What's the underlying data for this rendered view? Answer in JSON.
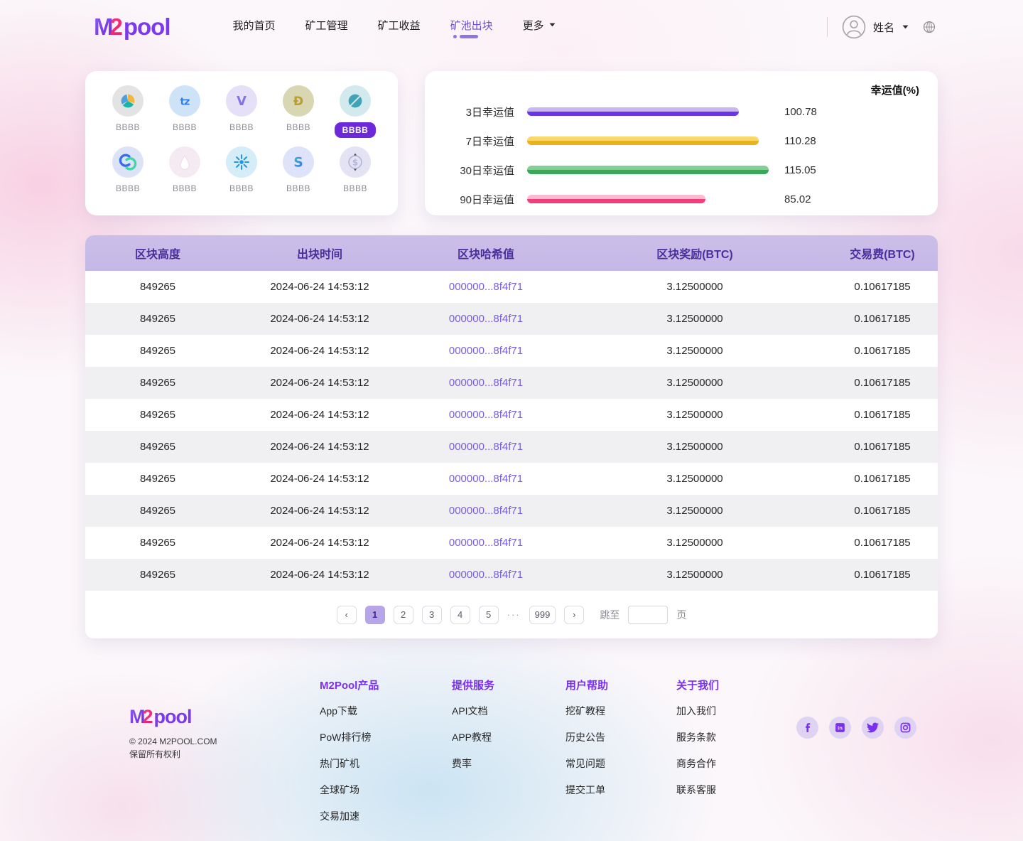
{
  "brand": {
    "m": "M",
    "two": "2",
    "pool": "pool"
  },
  "accent": {
    "purple": "#7c3aed",
    "pink": "#ec2d7a",
    "link_purple": "#7a5ce0",
    "selected_pill": "#6d28d9"
  },
  "header": {
    "nav": [
      {
        "label": "我的首页",
        "active": false
      },
      {
        "label": "矿工管理",
        "active": false
      },
      {
        "label": "矿工收益",
        "active": false
      },
      {
        "label": "矿池出块",
        "active": true
      },
      {
        "label": "更多",
        "active": false,
        "dropdown": true
      }
    ],
    "user": {
      "name": "姓名"
    }
  },
  "coin_panel": {
    "coins": [
      {
        "label": "BBBB",
        "icon": "nem",
        "bg": "#e3e3e3",
        "selected": false
      },
      {
        "label": "BBBB",
        "icon": "tezos",
        "bg": "#cfe3f8",
        "selected": false
      },
      {
        "label": "BBBB",
        "icon": "vechain",
        "bg": "#e5e0f7",
        "selected": false
      },
      {
        "label": "BBBB",
        "icon": "dogecoin",
        "bg": "#d8d7b2",
        "selected": false
      },
      {
        "label": "BBBB",
        "icon": "ontology",
        "bg": "#d2e9ed",
        "selected": true
      },
      {
        "label": "BBBB",
        "icon": "decred",
        "bg": "#dde3f7",
        "selected": false
      },
      {
        "label": "BBBB",
        "icon": "droplet",
        "bg": "#f6eaf2",
        "selected": false
      },
      {
        "label": "BBBB",
        "icon": "bitshares",
        "bg": "#d5ecf9",
        "selected": false
      },
      {
        "label": "BBBB",
        "icon": "s-cube",
        "bg": "#dfe3f9",
        "selected": false
      },
      {
        "label": "BBBB",
        "icon": "dollar",
        "bg": "#e3e3f4",
        "selected": false
      }
    ]
  },
  "chart_data": {
    "type": "bar",
    "orientation": "horizontal",
    "title": "幸运值(%)",
    "categories": [
      "3日幸运值",
      "7日幸运值",
      "30日幸运值",
      "90日幸运值"
    ],
    "values": [
      100.78,
      110.28,
      115.05,
      85.02
    ],
    "value_labels": [
      "100.78",
      "110.28",
      "115.05",
      "85.02"
    ],
    "xlim": [
      0,
      115.05
    ],
    "grid": false,
    "legend": "none",
    "colors_light": [
      "#c9b7f1",
      "#f8d76d",
      "#82cf93",
      "#f8bcd1"
    ],
    "colors_dark": [
      "#6a35e6",
      "#eab31e",
      "#3aa85b",
      "#f23f7c"
    ]
  },
  "table": {
    "columns": [
      "区块高度",
      "出块时间",
      "区块哈希值",
      "区块奖励(BTC)",
      "交易费(BTC)"
    ],
    "rows": [
      {
        "height": "849265",
        "time": "2024-06-24 14:53:12",
        "hash": "000000...8f4f71",
        "reward": "3.12500000",
        "fee": "0.10617185"
      },
      {
        "height": "849265",
        "time": "2024-06-24 14:53:12",
        "hash": "000000...8f4f71",
        "reward": "3.12500000",
        "fee": "0.10617185"
      },
      {
        "height": "849265",
        "time": "2024-06-24 14:53:12",
        "hash": "000000...8f4f71",
        "reward": "3.12500000",
        "fee": "0.10617185"
      },
      {
        "height": "849265",
        "time": "2024-06-24 14:53:12",
        "hash": "000000...8f4f71",
        "reward": "3.12500000",
        "fee": "0.10617185"
      },
      {
        "height": "849265",
        "time": "2024-06-24 14:53:12",
        "hash": "000000...8f4f71",
        "reward": "3.12500000",
        "fee": "0.10617185"
      },
      {
        "height": "849265",
        "time": "2024-06-24 14:53:12",
        "hash": "000000...8f4f71",
        "reward": "3.12500000",
        "fee": "0.10617185"
      },
      {
        "height": "849265",
        "time": "2024-06-24 14:53:12",
        "hash": "000000...8f4f71",
        "reward": "3.12500000",
        "fee": "0.10617185"
      },
      {
        "height": "849265",
        "time": "2024-06-24 14:53:12",
        "hash": "000000...8f4f71",
        "reward": "3.12500000",
        "fee": "0.10617185"
      },
      {
        "height": "849265",
        "time": "2024-06-24 14:53:12",
        "hash": "000000...8f4f71",
        "reward": "3.12500000",
        "fee": "0.10617185"
      },
      {
        "height": "849265",
        "time": "2024-06-24 14:53:12",
        "hash": "000000...8f4f71",
        "reward": "3.12500000",
        "fee": "0.10617185"
      }
    ]
  },
  "pagination": {
    "prev": "‹",
    "next": "›",
    "pages": [
      "1",
      "2",
      "3",
      "4",
      "5"
    ],
    "active_page": "1",
    "ellipsis": "···",
    "last_page": "999",
    "jump_label": "跳至",
    "unit_label": "页",
    "jump_value": ""
  },
  "footer": {
    "copyright_line1": "© 2024 M2POOL.COM",
    "copyright_line2": "保留所有权利",
    "columns": [
      {
        "heading": "M2Pool产品",
        "links": [
          "App下载",
          "PoW排行榜",
          "热门矿机",
          "全球矿场",
          "交易加速"
        ]
      },
      {
        "heading": "提供服务",
        "links": [
          "API文档",
          "APP教程",
          "费率"
        ]
      },
      {
        "heading": "用户帮助",
        "links": [
          "挖矿教程",
          "历史公告",
          "常见问题",
          "提交工单"
        ]
      },
      {
        "heading": "关于我们",
        "links": [
          "加入我们",
          "服务条款",
          "商务合作",
          "联系客服"
        ]
      }
    ],
    "social": [
      "facebook",
      "linkedin",
      "twitter",
      "instagram"
    ]
  }
}
